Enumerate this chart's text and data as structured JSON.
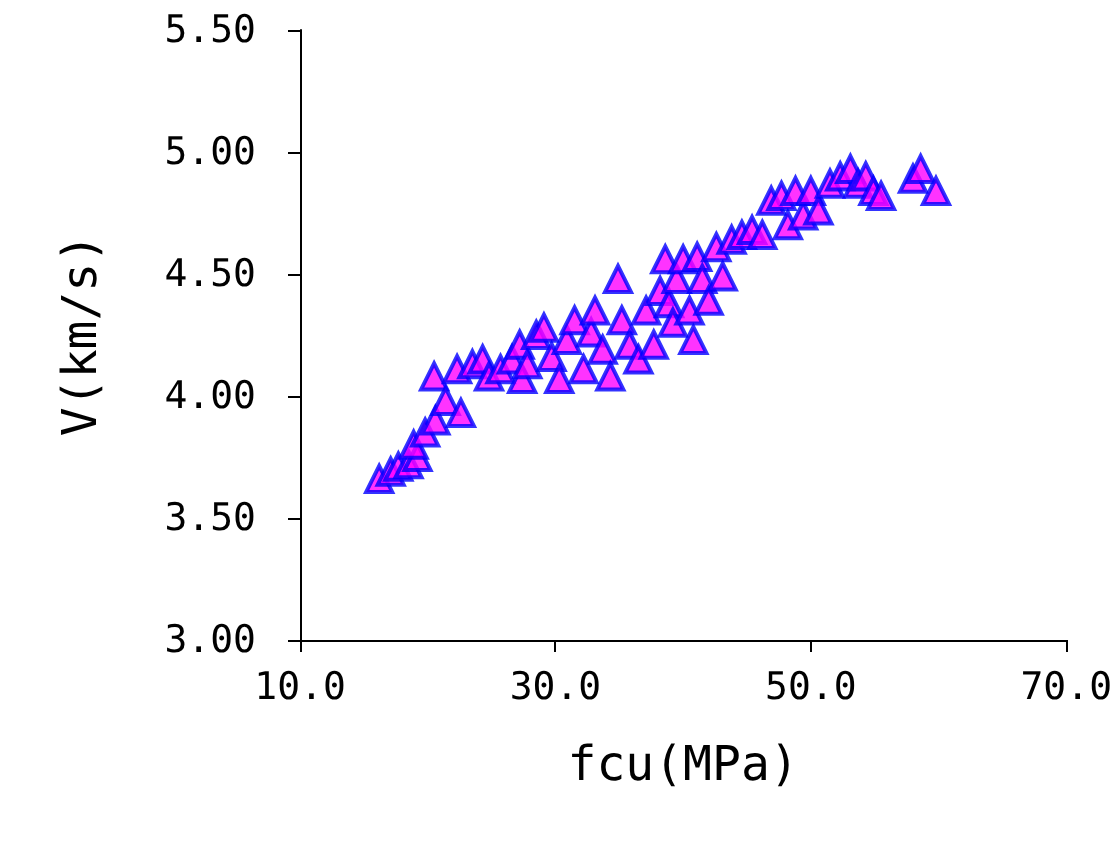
{
  "chart_data": {
    "type": "scatter",
    "xlabel": "fcu(MPa)",
    "ylabel": "V(km/s)",
    "xlim": [
      10,
      70
    ],
    "ylim": [
      3,
      5.5
    ],
    "xticks": [
      {
        "value": 10,
        "label": "10.0"
      },
      {
        "value": 30,
        "label": "30.0"
      },
      {
        "value": 50,
        "label": "50.0"
      },
      {
        "value": 70,
        "label": "70.0"
      }
    ],
    "yticks": [
      {
        "value": 3,
        "label": "3.00"
      },
      {
        "value": 3.5,
        "label": "3.50"
      },
      {
        "value": 4,
        "label": "4.00"
      },
      {
        "value": 4.5,
        "label": "4.50"
      },
      {
        "value": 5,
        "label": "5.00"
      },
      {
        "value": 5.5,
        "label": "5.50"
      }
    ],
    "marker": "triangle",
    "series": [
      {
        "color": "#ff00ff",
        "x": [
          16.2,
          17.1,
          17.7,
          18.5,
          19.2,
          18.9,
          19.8,
          20.6,
          20.5,
          21.4,
          22.6,
          22.3,
          23.5,
          24.3,
          24.8,
          25.7,
          26.6,
          27.2,
          27.4,
          27.8,
          28.5,
          29.1,
          29.7,
          30.3,
          30.9,
          31.5,
          32.2,
          32.8,
          33.1,
          33.7,
          34.3,
          34.9,
          35.2,
          35.8,
          36.5,
          37.1,
          37.7,
          38.2,
          38.6,
          38.9,
          39.2,
          39.5,
          40.0,
          40.5,
          40.8,
          41.1,
          41.5,
          42.0,
          42.6,
          43.1,
          43.8,
          44.6,
          45.4,
          46.2,
          46.9,
          47.7,
          48.2,
          48.8,
          49.4,
          50.0,
          50.6,
          51.5,
          52.3,
          53.1,
          53.7,
          54.3,
          54.9,
          55.5,
          58.0,
          58.6,
          59.8
        ],
        "values": [
          3.66,
          3.69,
          3.71,
          3.72,
          3.75,
          3.8,
          3.85,
          3.9,
          4.08,
          3.98,
          3.93,
          4.11,
          4.13,
          4.15,
          4.08,
          4.11,
          4.15,
          4.21,
          4.07,
          4.13,
          4.25,
          4.28,
          4.16,
          4.07,
          4.23,
          4.31,
          4.11,
          4.26,
          4.35,
          4.19,
          4.08,
          4.48,
          4.31,
          4.21,
          4.15,
          4.35,
          4.21,
          4.43,
          4.56,
          4.38,
          4.3,
          4.48,
          4.56,
          4.35,
          4.23,
          4.57,
          4.48,
          4.39,
          4.61,
          4.49,
          4.64,
          4.66,
          4.68,
          4.66,
          4.8,
          4.82,
          4.7,
          4.84,
          4.74,
          4.84,
          4.76,
          4.87,
          4.9,
          4.93,
          4.87,
          4.9,
          4.84,
          4.82,
          4.89,
          4.93,
          4.84
        ]
      }
    ]
  }
}
